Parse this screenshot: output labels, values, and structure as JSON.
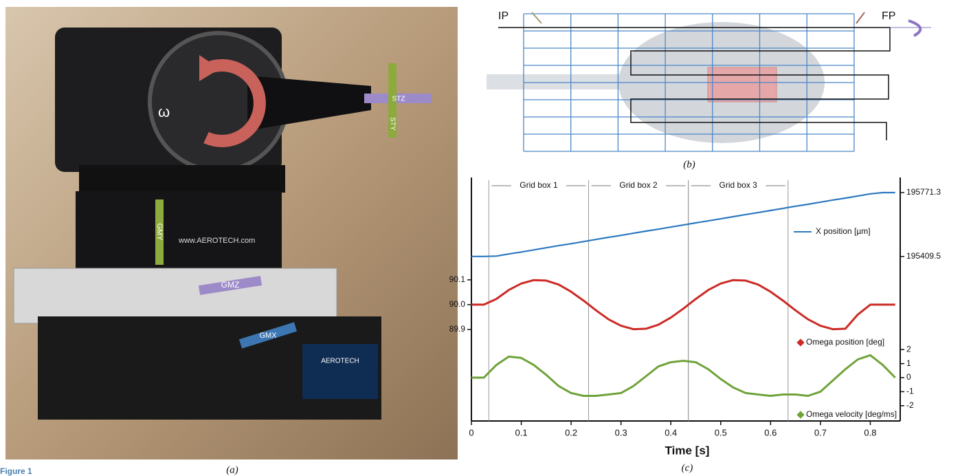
{
  "photo": {
    "label": "(a)",
    "annotations": [
      "ω",
      "STZ",
      "STY",
      "GMY",
      "GMZ",
      "GMX"
    ],
    "brand": "www.AEROTECH.com",
    "brand2": "AEROTECH"
  },
  "figure_caption": "Figure 1",
  "diagram": {
    "label": "(b)",
    "start": "IP",
    "end": "FP"
  },
  "chart_data": {
    "type": "line",
    "label": "(c)",
    "x_label": "Time [s]",
    "xlim": [
      0,
      0.86
    ],
    "xticks": [
      0,
      0.1,
      0.2,
      0.3,
      0.4,
      0.5,
      0.6,
      0.7,
      0.8
    ],
    "x": [
      0,
      0.025,
      0.05,
      0.075,
      0.1,
      0.125,
      0.15,
      0.175,
      0.2,
      0.225,
      0.25,
      0.275,
      0.3,
      0.325,
      0.35,
      0.375,
      0.4,
      0.425,
      0.45,
      0.475,
      0.5,
      0.525,
      0.55,
      0.575,
      0.6,
      0.625,
      0.65,
      0.675,
      0.7,
      0.725,
      0.75,
      0.775,
      0.8,
      0.825,
      0.85
    ],
    "grid_boxes": [
      {
        "label": "Grid box 1",
        "start": 0.035,
        "end": 0.235
      },
      {
        "label": "Grid box 2",
        "start": 0.235,
        "end": 0.435
      },
      {
        "label": "Grid box 3",
        "start": 0.435,
        "end": 0.635
      }
    ],
    "series": [
      {
        "name": "X position [µm]",
        "color": "#2a78c0",
        "axis": "right",
        "ylim": [
          195343,
          195849
        ],
        "yticks": [
          195409.5,
          195771.3
        ],
        "values": [
          195410,
          195410,
          195412,
          195424,
          195435,
          195447,
          195459,
          195471,
          195482,
          195494,
          195506,
          195518,
          195529,
          195541,
          195553,
          195564,
          195576,
          195588,
          195600,
          195611,
          195623,
          195635,
          195647,
          195658,
          195670,
          195682,
          195694,
          195705,
          195717,
          195729,
          195740,
          195752,
          195764,
          195771,
          195771
        ]
      },
      {
        "name": "Omega position [deg]",
        "color": "#cc2a25",
        "axis": "left",
        "ylim": [
          89.85,
          90.13
        ],
        "yticks": [
          89.9,
          {
            "value": 90,
            "label": "90.0"
          },
          90.1
        ],
        "values": [
          90,
          90,
          90.023,
          90.059,
          90.085,
          90.099,
          90.097,
          90.081,
          90.052,
          90.016,
          89.977,
          89.941,
          89.915,
          89.901,
          89.903,
          89.919,
          89.948,
          89.984,
          90.023,
          90.059,
          90.085,
          90.099,
          90.097,
          90.081,
          90.052,
          90.016,
          89.977,
          89.941,
          89.915,
          89.901,
          89.903,
          89.96,
          90,
          90,
          90
        ]
      },
      {
        "name": "Omega velocity [deg/ms]",
        "color": "#6fa33a",
        "axis": "right",
        "ylim": [
          -2.5,
          2.5
        ],
        "yticks": [
          -2,
          -1,
          0,
          1,
          2
        ],
        "values": [
          0,
          0,
          0.9,
          1.5,
          1.4,
          0.9,
          0.2,
          -0.6,
          -1.1,
          -1.3,
          -1.3,
          -1.2,
          -1.1,
          -0.6,
          0.1,
          0.8,
          1.1,
          1.2,
          1.1,
          0.6,
          -0.1,
          -0.7,
          -1.1,
          -1.2,
          -1.3,
          -1.2,
          -1.2,
          -1.3,
          -1,
          -0.2,
          0.6,
          1.3,
          1.6,
          0.9,
          0
        ]
      }
    ]
  }
}
